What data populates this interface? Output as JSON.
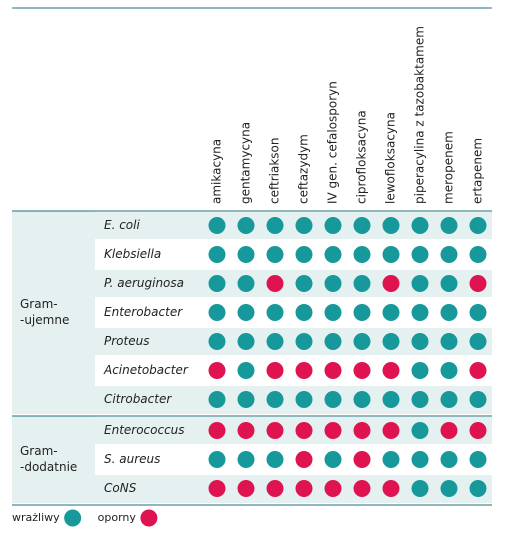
{
  "columns": [
    "amikacyna",
    "gentamycyna",
    "ceftriakson",
    "ceftazydym",
    "IV gen. cefalosporyn",
    "ciprofloksacyna",
    "lewofloksacyna",
    "piperacylina z tazobaktamem",
    "meropenem",
    "ertapenem"
  ],
  "legend": [
    {
      "label": "wrażliwy",
      "color": "#17999b"
    },
    {
      "label": "oporny",
      "color": "#df1350"
    }
  ],
  "groups": [
    {
      "label": [
        "Gram-",
        "-ujemne"
      ],
      "rows": [
        {
          "name": "E. coli",
          "cells": [
            "wrażliwy",
            "wrażliwy",
            "wrażliwy",
            "wrażliwy",
            "wrażliwy",
            "wrażliwy",
            "wrażliwy",
            "wrażliwy",
            "wrażliwy",
            "wrażliwy"
          ]
        },
        {
          "name": "Klebsiella",
          "cells": [
            "wrażliwy",
            "wrażliwy",
            "wrażliwy",
            "wrażliwy",
            "wrażliwy",
            "wrażliwy",
            "wrażliwy",
            "wrażliwy",
            "wrażliwy",
            "wrażliwy"
          ]
        },
        {
          "name": "P. aeruginosa",
          "cells": [
            "wrażliwy",
            "wrażliwy",
            "oporny",
            "wrażliwy",
            "wrażliwy",
            "wrażliwy",
            "oporny",
            "wrażliwy",
            "wrażliwy",
            "oporny"
          ]
        },
        {
          "name": "Enterobacter",
          "cells": [
            "wrażliwy",
            "wrażliwy",
            "wrażliwy",
            "wrażliwy",
            "wrażliwy",
            "wrażliwy",
            "wrażliwy",
            "wrażliwy",
            "wrażliwy",
            "wrażliwy"
          ]
        },
        {
          "name": "Proteus",
          "cells": [
            "wrażliwy",
            "wrażliwy",
            "wrażliwy",
            "wrażliwy",
            "wrażliwy",
            "wrażliwy",
            "wrażliwy",
            "wrażliwy",
            "wrażliwy",
            "wrażliwy"
          ]
        },
        {
          "name": "Acinetobacter",
          "cells": [
            "oporny",
            "wrażliwy",
            "oporny",
            "oporny",
            "oporny",
            "oporny",
            "oporny",
            "wrażliwy",
            "wrażliwy",
            "oporny"
          ]
        },
        {
          "name": "Citrobacter",
          "cells": [
            "wrażliwy",
            "wrażliwy",
            "wrażliwy",
            "wrażliwy",
            "wrażliwy",
            "wrażliwy",
            "wrażliwy",
            "wrażliwy",
            "wrażliwy",
            "wrażliwy"
          ]
        }
      ]
    },
    {
      "label": [
        "Gram-",
        "-dodatnie"
      ],
      "rows": [
        {
          "name": "Enterococcus",
          "cells": [
            "oporny",
            "oporny",
            "oporny",
            "oporny",
            "oporny",
            "oporny",
            "oporny",
            "wrażliwy",
            "oporny",
            "oporny"
          ]
        },
        {
          "name": "S. aureus",
          "cells": [
            "wrażliwy",
            "wrażliwy",
            "wrażliwy",
            "oporny",
            "wrażliwy",
            "oporny",
            "wrażliwy",
            "wrażliwy",
            "wrażliwy",
            "wrażliwy"
          ]
        },
        {
          "name": "CoNS",
          "cells": [
            "oporny",
            "oporny",
            "oporny",
            "oporny",
            "oporny",
            "oporny",
            "oporny",
            "wrażliwy",
            "wrażliwy",
            "wrażliwy"
          ]
        }
      ]
    }
  ]
}
